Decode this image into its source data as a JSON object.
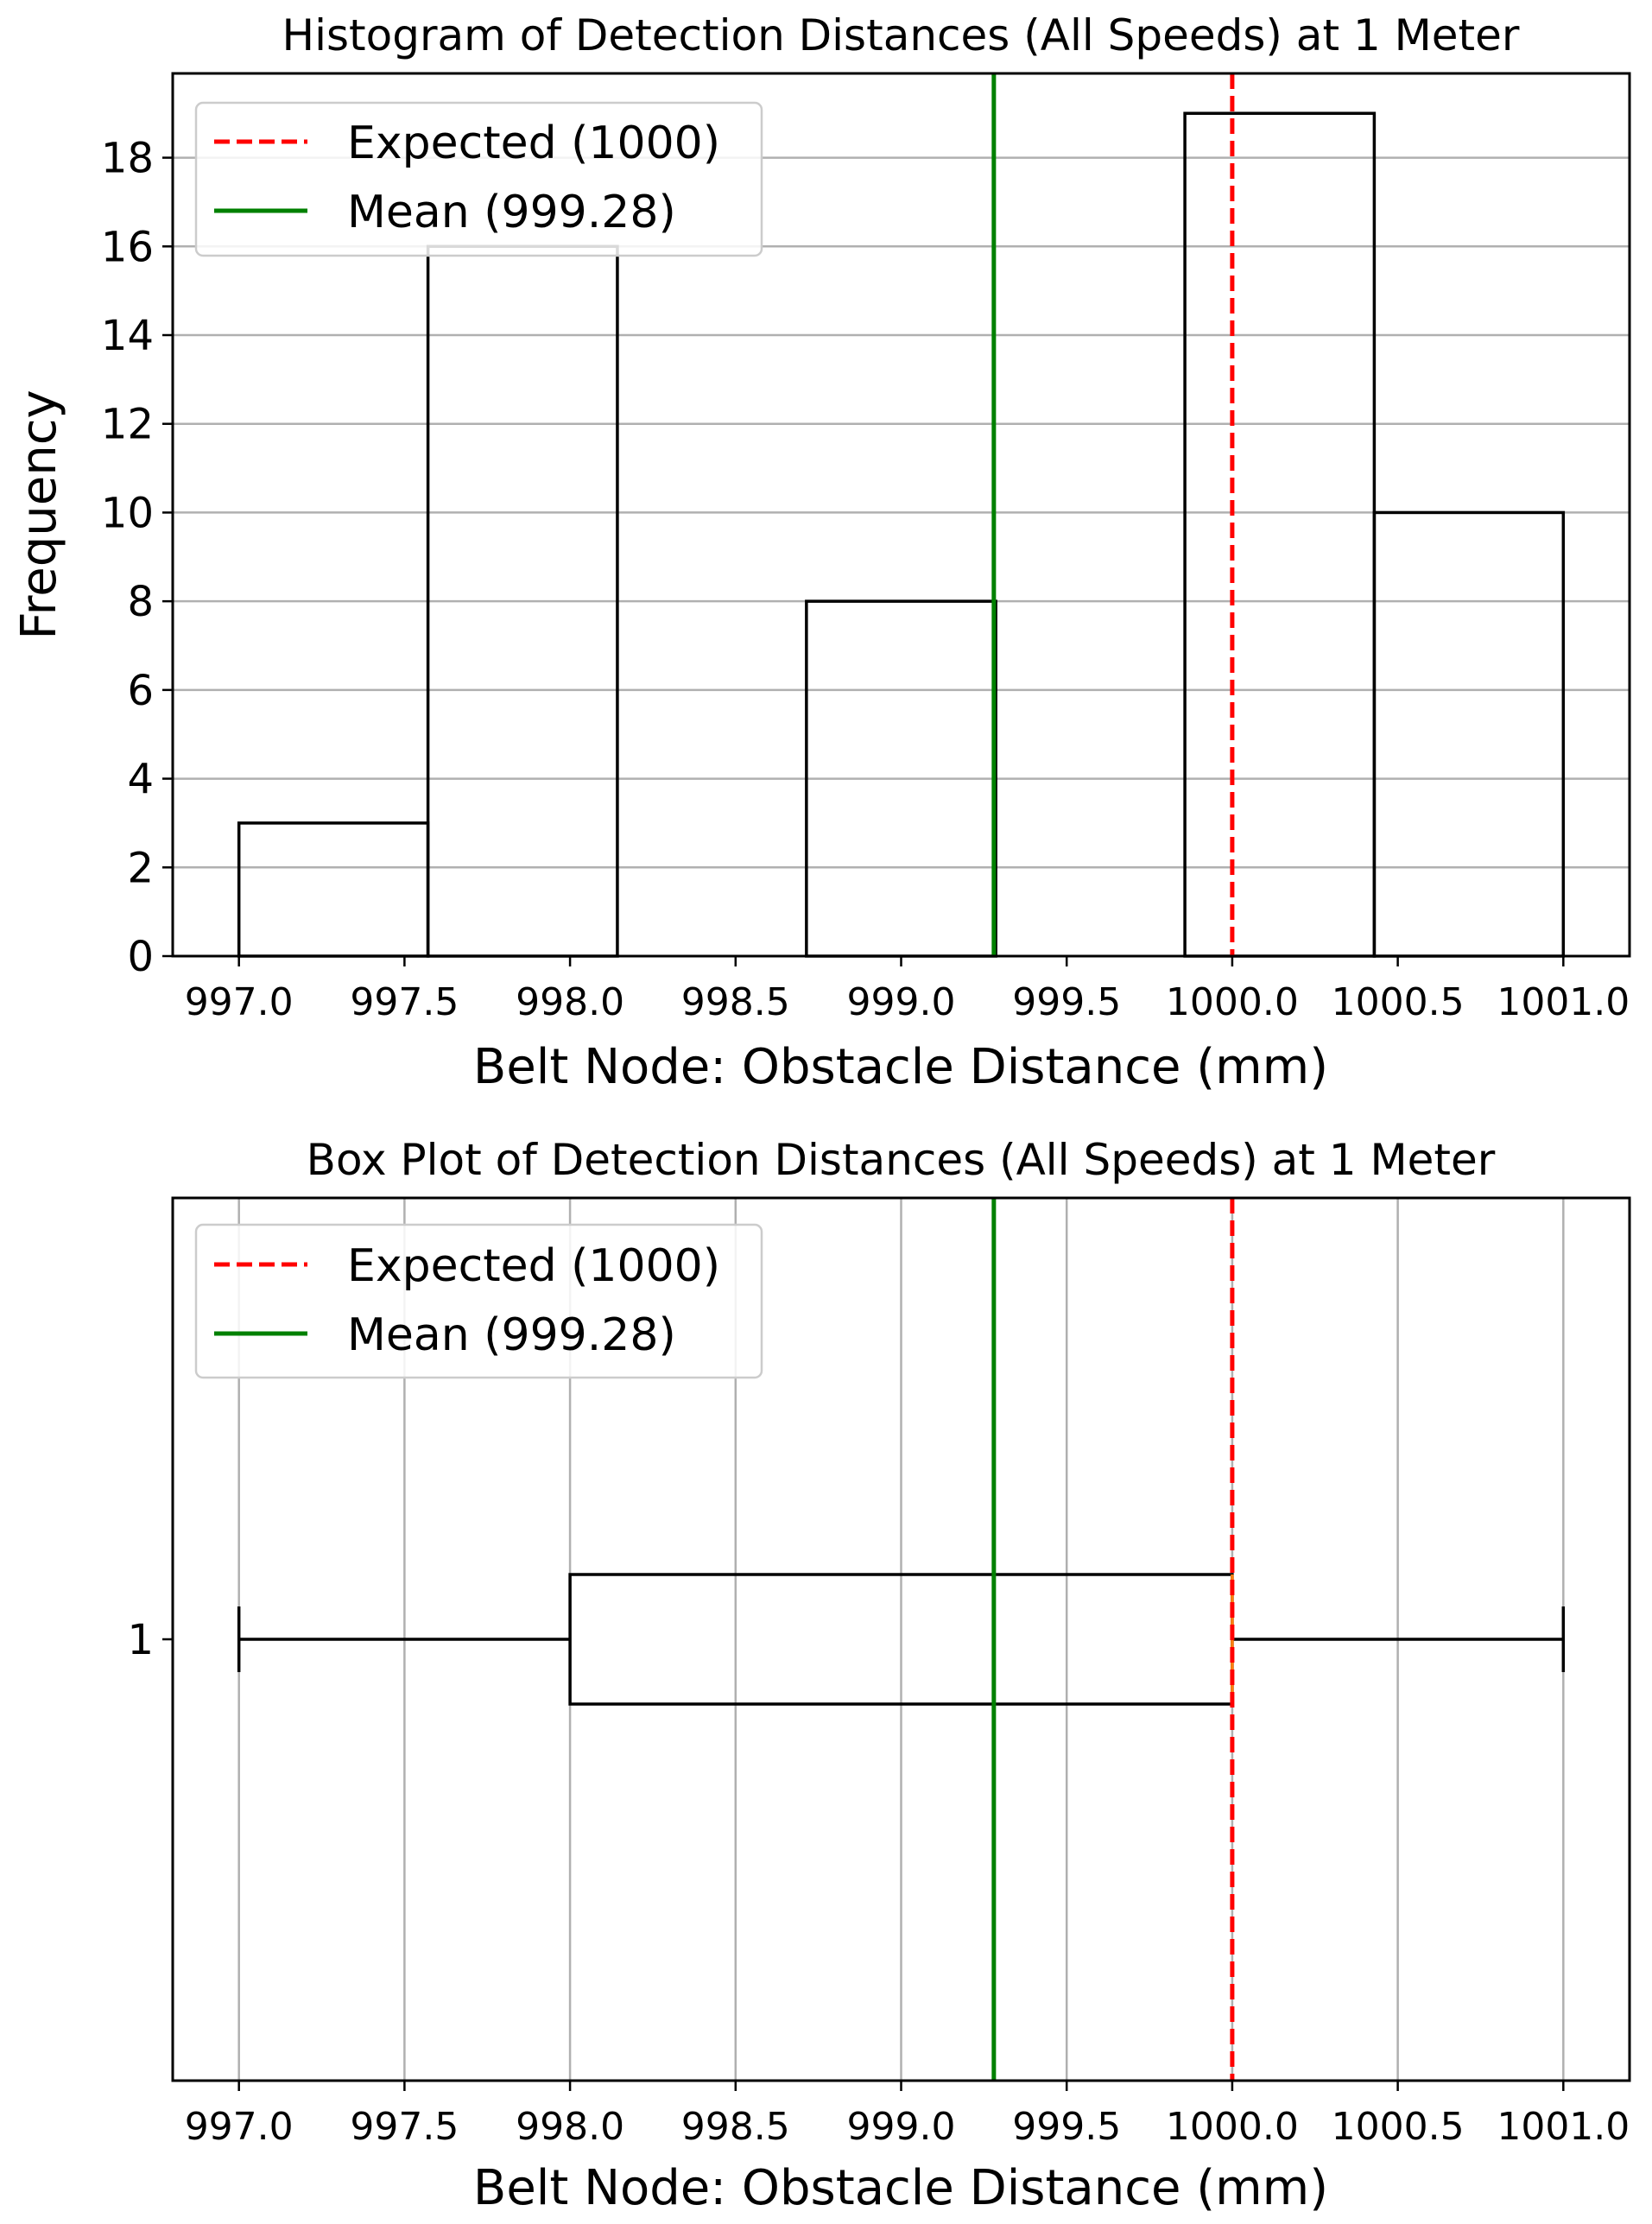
{
  "chart_data": [
    {
      "type": "histogram",
      "title": "Histogram of Detection Distances (All Speeds) at 1 Meter",
      "xlabel": "Belt Node: Obstacle Distance (mm)",
      "ylabel": "Frequency",
      "xlim": [
        996.8,
        1001.2
      ],
      "ylim": [
        0,
        19.9
      ],
      "xticks": [
        997.0,
        997.5,
        998.0,
        998.5,
        999.0,
        999.5,
        1000.0,
        1000.5,
        1001.0
      ],
      "xtick_labels": [
        "997.0",
        "997.5",
        "998.0",
        "998.5",
        "999.0",
        "999.5",
        "1000.0",
        "1000.5",
        "1001.0"
      ],
      "yticks": [
        0,
        2,
        4,
        6,
        8,
        10,
        12,
        14,
        16,
        18
      ],
      "ytick_labels": [
        "0",
        "2",
        "4",
        "6",
        "8",
        "10",
        "12",
        "14",
        "16",
        "18"
      ],
      "bins": [
        {
          "x0": 997.0,
          "x1": 997.571,
          "count": 3
        },
        {
          "x0": 997.571,
          "x1": 998.143,
          "count": 16
        },
        {
          "x0": 998.143,
          "x1": 998.714,
          "count": 0
        },
        {
          "x0": 998.714,
          "x1": 999.286,
          "count": 8
        },
        {
          "x0": 999.286,
          "x1": 999.857,
          "count": 0
        },
        {
          "x0": 999.857,
          "x1": 1000.429,
          "count": 19
        },
        {
          "x0": 1000.429,
          "x1": 1001.0,
          "count": 10
        }
      ],
      "grid": "y",
      "reference_lines": [
        {
          "label": "Expected (1000)",
          "value": 1000,
          "style": "dashed",
          "color": "#ff0000"
        },
        {
          "label": "Mean (999.28)",
          "value": 999.28,
          "style": "solid",
          "color": "#008000"
        }
      ],
      "legend_position": "top-left"
    },
    {
      "type": "box",
      "orientation": "horizontal",
      "title": "Box Plot of Detection Distances (All Speeds) at 1 Meter",
      "xlabel": "Belt Node: Obstacle Distance (mm)",
      "xlim": [
        996.8,
        1001.2
      ],
      "xticks": [
        997.0,
        997.5,
        998.0,
        998.5,
        999.0,
        999.5,
        1000.0,
        1000.5,
        1001.0
      ],
      "xtick_labels": [
        "997.0",
        "997.5",
        "998.0",
        "998.5",
        "999.0",
        "999.5",
        "1000.0",
        "1000.5",
        "1001.0"
      ],
      "category_label": "1",
      "box": {
        "whisker_low": 997.0,
        "q1": 998.0,
        "median": 1000.0,
        "q3": 1000.0,
        "whisker_high": 1001.0
      },
      "grid": "x",
      "reference_lines": [
        {
          "label": "Expected (1000)",
          "value": 1000,
          "style": "dashed",
          "color": "#ff0000"
        },
        {
          "label": "Mean (999.28)",
          "value": 999.28,
          "style": "solid",
          "color": "#008000"
        }
      ],
      "legend_position": "top-left"
    }
  ]
}
